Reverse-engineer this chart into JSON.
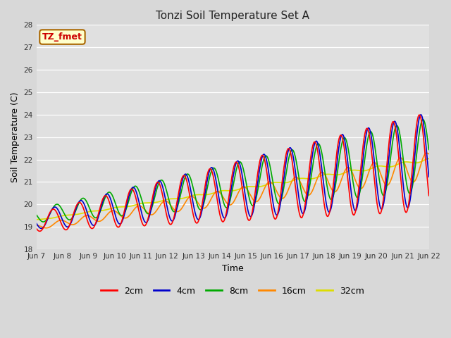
{
  "title": "Tonzi Soil Temperature Set A",
  "xlabel": "Time",
  "ylabel": "Soil Temperature (C)",
  "annotation": "TZ_fmet",
  "ylim": [
    18.0,
    28.0
  ],
  "yticks": [
    18.0,
    19.0,
    20.0,
    21.0,
    22.0,
    23.0,
    24.0,
    25.0,
    26.0,
    27.0,
    28.0
  ],
  "series_colors": [
    "#ff0000",
    "#0000cc",
    "#00aa00",
    "#ff8800",
    "#dddd00"
  ],
  "series_labels": [
    "2cm",
    "4cm",
    "8cm",
    "16cm",
    "32cm"
  ],
  "fig_bg_color": "#d8d8d8",
  "plot_bg_color": "#e0e0e0",
  "n_days": 15,
  "points_per_day": 96,
  "start_day": 7
}
